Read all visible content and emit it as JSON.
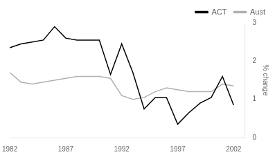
{
  "chart_data": {
    "type": "line",
    "x": [
      1982,
      1983,
      1984,
      1985,
      1986,
      1987,
      1988,
      1989,
      1990,
      1991,
      1992,
      1993,
      1994,
      1995,
      1996,
      1997,
      1998,
      1999,
      2000,
      2001,
      2002
    ],
    "series": [
      {
        "name": "ACT",
        "color": "#000000",
        "values": [
          2.35,
          2.45,
          2.5,
          2.55,
          2.9,
          2.6,
          2.55,
          2.55,
          2.55,
          1.65,
          2.45,
          1.7,
          0.75,
          1.05,
          1.05,
          0.35,
          0.65,
          0.9,
          1.05,
          1.6,
          0.85
        ]
      },
      {
        "name": "Aust",
        "color": "#b0b0b0",
        "values": [
          1.7,
          1.45,
          1.4,
          1.45,
          1.5,
          1.55,
          1.6,
          1.6,
          1.6,
          1.55,
          1.1,
          1.0,
          1.05,
          1.2,
          1.3,
          1.25,
          1.2,
          1.2,
          1.2,
          1.4,
          1.35
        ]
      }
    ],
    "y_label": "% change",
    "xlim": [
      1982,
      2003
    ],
    "xticks": [
      1982,
      1987,
      1992,
      1997,
      2002
    ],
    "ylim": [
      0,
      3
    ],
    "yticks": [
      0,
      1,
      2,
      3
    ],
    "grid": false,
    "legend": "upper right"
  }
}
